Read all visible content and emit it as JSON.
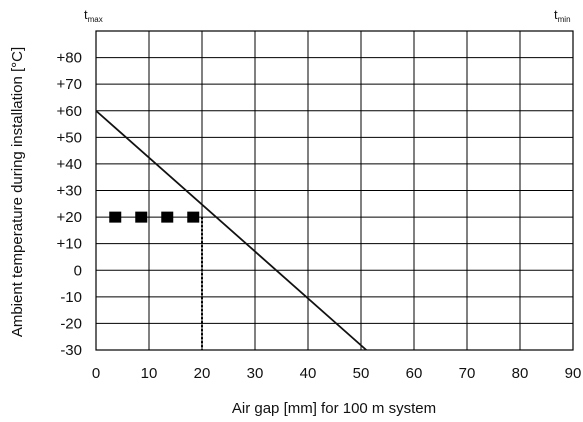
{
  "chart_data": {
    "type": "line",
    "xlabel": "Air gap [mm] for 100 m system",
    "ylabel": "Ambient temperature during installation [°C]",
    "xlim": [
      0,
      90
    ],
    "ylim": [
      -30,
      90
    ],
    "x_ticks": [
      "0",
      "10",
      "20",
      "30",
      "40",
      "50",
      "60",
      "70",
      "80",
      "90"
    ],
    "y_ticks": [
      "-30",
      "-20",
      "-10",
      "0",
      "+10",
      "+20",
      "+30",
      "+40",
      "+50",
      "+60",
      "+70",
      "+80"
    ],
    "grid": true,
    "top_left_label": {
      "main": "t",
      "sub": "max"
    },
    "top_right_label": {
      "main": "t",
      "sub": "min"
    },
    "series": [
      {
        "x": [
          0,
          51
        ],
        "y": [
          60,
          -30
        ]
      }
    ],
    "example": {
      "temperature": 20,
      "air_gap": 20
    }
  }
}
